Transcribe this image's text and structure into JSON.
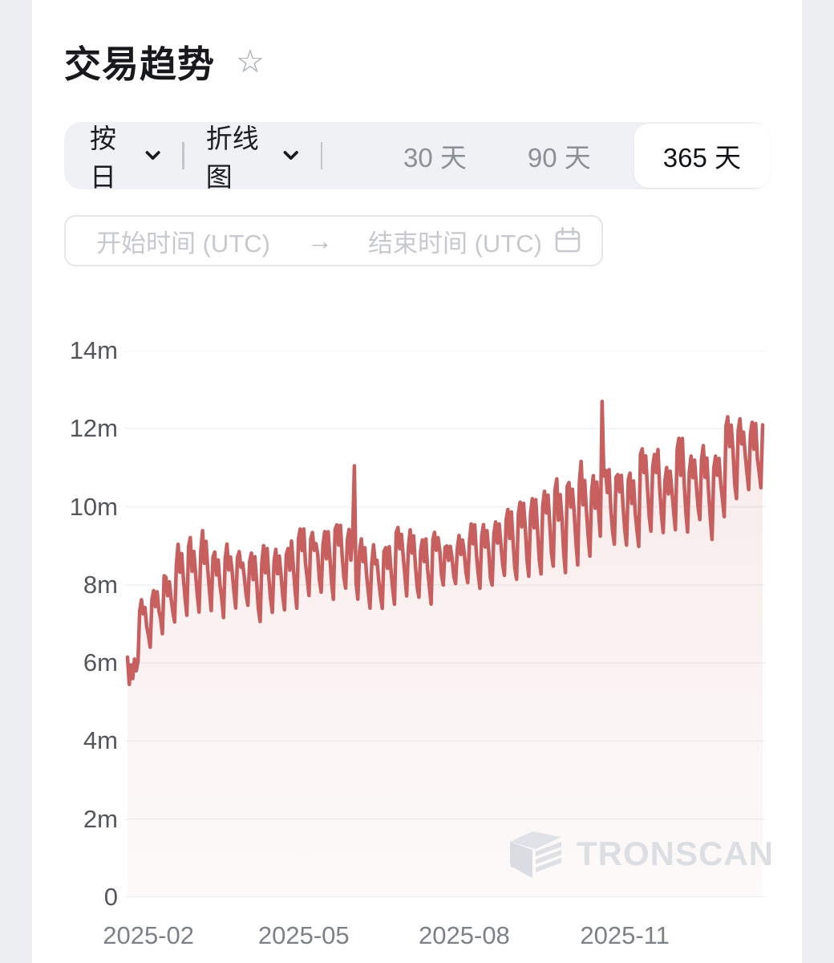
{
  "page": {
    "background": "#eceef2",
    "card_background": "#ffffff"
  },
  "header": {
    "title": "交易趋势",
    "favorite_icon": "star-outline",
    "favorite_glyph": "☆"
  },
  "toolbar": {
    "granularity": {
      "label": "按日"
    },
    "chart_type": {
      "label": "折线图"
    },
    "ranges": [
      {
        "label": "30 天",
        "active": false
      },
      {
        "label": "90 天",
        "active": false
      },
      {
        "label": "365 天",
        "active": true
      }
    ]
  },
  "date_range": {
    "start_placeholder": "开始时间 (UTC)",
    "end_placeholder": "结束时间 (UTC)",
    "arrow_glyph": "→",
    "calendar_icon": "calendar"
  },
  "watermark": {
    "text": "TRONSCAN"
  },
  "chart_data": {
    "type": "line",
    "title": "交易趋势",
    "line_color": "#c75f5f",
    "fill_color_top": "rgba(199,95,95,0.13)",
    "fill_color_bottom": "rgba(199,95,95,0.03)",
    "grid_color": "#f1f2f3",
    "baseline_color": "#e9eaed",
    "ylim": [
      0,
      14000000
    ],
    "y_ticks": [
      "14m",
      "12m",
      "10m",
      "8m",
      "6m",
      "4m",
      "2m",
      "0"
    ],
    "x_ticks": [
      "2025-02",
      "2025-05",
      "2025-08",
      "2025-11"
    ],
    "month_tick_days": [
      12,
      101,
      193,
      285
    ],
    "days_total": 365,
    "start_day_values_m": [
      6.15,
      5.45,
      5.95,
      5.6,
      6.1,
      5.8,
      6.05
    ],
    "weekly_envelope_m": [
      [
        6.2,
        5.4
      ],
      [
        7.6,
        6.4
      ],
      [
        7.9,
        6.8
      ],
      [
        8.3,
        7.0
      ],
      [
        8.9,
        7.2
      ],
      [
        9.1,
        7.4
      ],
      [
        9.3,
        7.3
      ],
      [
        8.9,
        7.2
      ],
      [
        9.0,
        7.4
      ],
      [
        8.8,
        7.4
      ],
      [
        8.7,
        7.0
      ],
      [
        9.0,
        7.2
      ],
      [
        8.8,
        7.4
      ],
      [
        9.1,
        7.5
      ],
      [
        9.4,
        7.7
      ],
      [
        9.3,
        7.8
      ],
      [
        9.4,
        7.6
      ],
      [
        9.5,
        7.9
      ],
      [
        9.3,
        7.7
      ],
      [
        9.2,
        7.5
      ],
      [
        8.9,
        7.4
      ],
      [
        9.0,
        7.5
      ],
      [
        9.5,
        7.8
      ],
      [
        9.3,
        7.6
      ],
      [
        9.2,
        7.5
      ],
      [
        9.4,
        7.9
      ],
      [
        9.0,
        8.0
      ],
      [
        9.2,
        8.1
      ],
      [
        9.5,
        8.0
      ],
      [
        9.4,
        7.9
      ],
      [
        9.6,
        8.2
      ],
      [
        9.9,
        8.1
      ],
      [
        10.1,
        8.3
      ],
      [
        10.2,
        8.2
      ],
      [
        10.4,
        8.4
      ],
      [
        10.6,
        8.4
      ],
      [
        10.7,
        8.6
      ],
      [
        11.0,
        8.7
      ],
      [
        10.8,
        8.8
      ],
      [
        11.0,
        9.0
      ],
      [
        10.9,
        9.1
      ],
      [
        10.8,
        9.0
      ],
      [
        11.6,
        9.3
      ],
      [
        11.5,
        9.3
      ],
      [
        11.0,
        9.5
      ],
      [
        11.8,
        9.4
      ],
      [
        11.2,
        9.6
      ],
      [
        11.5,
        9.2
      ],
      [
        11.3,
        9.8
      ],
      [
        12.3,
        10.2
      ],
      [
        12.2,
        10.4
      ],
      [
        12.1,
        10.5
      ]
    ],
    "weekday_pattern": [
      0.15,
      0.0,
      0.35,
      0.08,
      0.45,
      0.78,
      1.0
    ],
    "spikes": [
      {
        "day": 130,
        "value_m": 11.05
      },
      {
        "day": 272,
        "value_m": 12.7
      }
    ],
    "end_value_m": 12.1
  }
}
